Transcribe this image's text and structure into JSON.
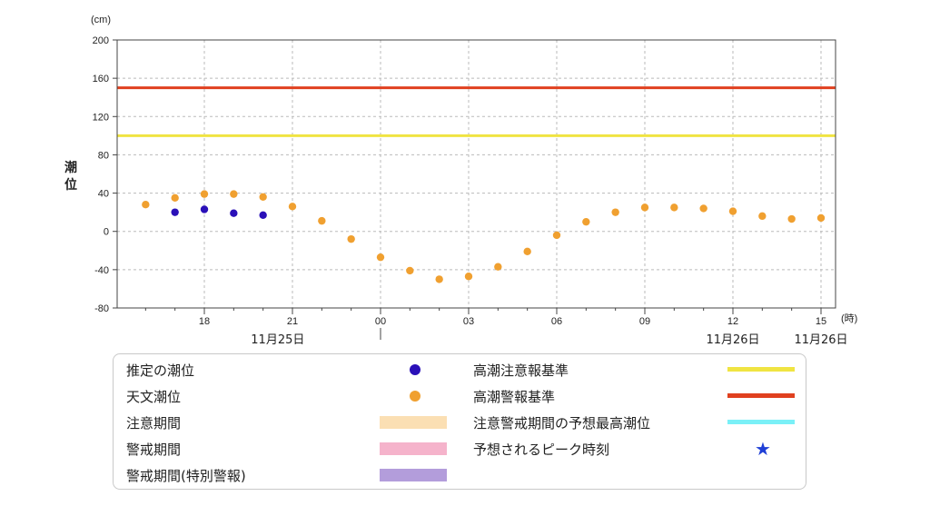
{
  "chart_data": {
    "type": "scatter",
    "ylabel": "潮位",
    "y_unit": "(cm)",
    "x_unit": "(時)",
    "ylim": [
      -80,
      200
    ],
    "yticks": [
      200,
      160,
      120,
      80,
      40,
      0,
      -40,
      -80
    ],
    "xlim_hours": [
      14,
      39.6
    ],
    "xticks": [
      {
        "hour": 18,
        "label": "18"
      },
      {
        "hour": 21,
        "label": "21"
      },
      {
        "hour": 24,
        "label": "00"
      },
      {
        "hour": 27,
        "label": "03"
      },
      {
        "hour": 30,
        "label": "06"
      },
      {
        "hour": 33,
        "label": "09"
      },
      {
        "hour": 36,
        "label": "12"
      },
      {
        "hour": 39,
        "label": "15"
      }
    ],
    "date_labels": [
      {
        "hour": 20.5,
        "label": "11月25日"
      },
      {
        "hour": 36,
        "label": "11月26日"
      },
      {
        "hour": 39,
        "label": "11月26日"
      }
    ],
    "grid": true,
    "thresholds": [
      {
        "name": "高潮注意報基準",
        "value": 100,
        "color": "#f0e442"
      },
      {
        "name": "高潮警報基準",
        "value": 150,
        "color": "#e0401f"
      }
    ],
    "series": [
      {
        "name": "推定の潮位",
        "color": "#2a10b8",
        "x": [
          17,
          18,
          19,
          20
        ],
        "values": [
          20,
          23,
          19,
          17
        ]
      },
      {
        "name": "天文潮位",
        "color": "#f0a030",
        "x": [
          16,
          17,
          18,
          19,
          20,
          21,
          22,
          23,
          24,
          25,
          26,
          27,
          28,
          29,
          30,
          31,
          32,
          33,
          34,
          35,
          36,
          37,
          38,
          39
        ],
        "values": [
          28,
          35,
          39,
          39,
          36,
          26,
          11,
          -8,
          -27,
          -41,
          -50,
          -47,
          -37,
          -21,
          -4,
          10,
          20,
          25,
          25,
          24,
          21,
          16,
          13,
          14
        ]
      }
    ]
  },
  "legend": {
    "items": [
      {
        "label": "推定の潮位",
        "kind": "dot",
        "color": "#2a10b8"
      },
      {
        "label": "天文潮位",
        "kind": "dot",
        "color": "#f0a030"
      },
      {
        "label": "注意期間",
        "kind": "rect",
        "color": "#fbdfb3"
      },
      {
        "label": "警戒期間",
        "kind": "rect",
        "color": "#f5b3cb"
      },
      {
        "label": "警戒期間(特別警報)",
        "kind": "rect",
        "color": "#b39ddb"
      },
      {
        "label": "高潮注意報基準",
        "kind": "line",
        "color": "#f0e442"
      },
      {
        "label": "高潮警報基準",
        "kind": "line",
        "color": "#e0401f"
      },
      {
        "label": "注意警戒期間の予想最高潮位",
        "kind": "line",
        "color": "#7af0f7"
      },
      {
        "label": "予想されるピーク時刻",
        "kind": "star",
        "color": "#1f3fd6"
      }
    ]
  }
}
